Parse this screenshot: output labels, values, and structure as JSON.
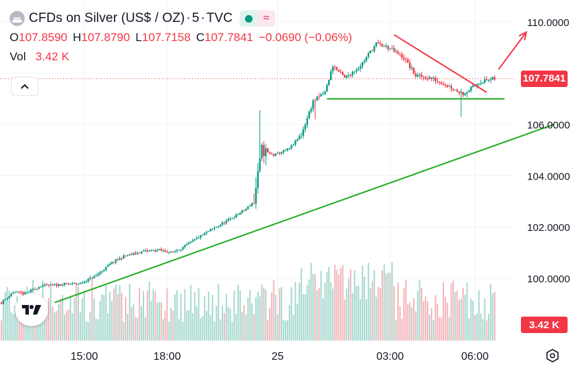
{
  "symbol": {
    "title": "CFDs on Silver (US$ / OZ)",
    "interval": "5",
    "source": "TVC",
    "sep": "·"
  },
  "ohlc": {
    "o_label": "O",
    "o": "107.8590",
    "h_label": "H",
    "h": "107.8790",
    "l_label": "L",
    "l": "107.7158",
    "c_label": "C",
    "c": "107.7841",
    "change": "−0.0690 (−0.06%)"
  },
  "volume": {
    "label": "Vol",
    "value": "3.42 K"
  },
  "icons": {
    "symbol_logo": "silver-logo-icon",
    "market_open": "market-open-dot-icon",
    "alt": "approx-icon",
    "collapse": "chevron-up-icon",
    "brand": "tradingview-logo-icon",
    "settings": "settings-icon"
  },
  "price_labels": {
    "last_price": "107.7841",
    "volume": "3.42 K"
  },
  "colors": {
    "up": "#089981",
    "down": "#f23645",
    "volume_up": "#a6d9cf",
    "volume_down": "#f5b5b9",
    "trend_green": "#22ab20",
    "trend_red": "#f23645"
  },
  "chart_data": {
    "type": "candlestick",
    "x_ticks": [
      "15:00",
      "18:00",
      "25",
      "03:00",
      "06:00"
    ],
    "y_ticks": [
      "110.0000",
      "106.0000",
      "104.0000",
      "102.0000",
      "100.0000"
    ],
    "ylim": [
      97.9,
      111.2
    ],
    "last_price": 107.7841,
    "anchors": [
      {
        "t": 0,
        "p": 99.05
      },
      {
        "t": 6,
        "p": 99.45
      },
      {
        "t": 12,
        "p": 99.4
      },
      {
        "t": 20,
        "p": 99.7
      },
      {
        "t": 30,
        "p": 99.75
      },
      {
        "t": 40,
        "p": 99.8
      },
      {
        "t": 48,
        "p": 100.1
      },
      {
        "t": 56,
        "p": 100.6
      },
      {
        "t": 62,
        "p": 100.85
      },
      {
        "t": 72,
        "p": 101.05
      },
      {
        "t": 80,
        "p": 101.1
      },
      {
        "t": 86,
        "p": 101.0
      },
      {
        "t": 92,
        "p": 101.2
      },
      {
        "t": 100,
        "p": 101.6
      },
      {
        "t": 110,
        "p": 102.05
      },
      {
        "t": 118,
        "p": 102.4
      },
      {
        "t": 124,
        "p": 102.7
      },
      {
        "t": 128,
        "p": 103.0
      },
      {
        "t": 132,
        "p": 105.0
      },
      {
        "t": 138,
        "p": 104.8
      },
      {
        "t": 146,
        "p": 105.05
      },
      {
        "t": 152,
        "p": 105.6
      },
      {
        "t": 158,
        "p": 106.9
      },
      {
        "t": 164,
        "p": 107.25
      },
      {
        "t": 168,
        "p": 108.3
      },
      {
        "t": 174,
        "p": 107.8
      },
      {
        "t": 182,
        "p": 108.3
      },
      {
        "t": 190,
        "p": 109.15
      },
      {
        "t": 196,
        "p": 109.0
      },
      {
        "t": 204,
        "p": 108.6
      },
      {
        "t": 210,
        "p": 107.9
      },
      {
        "t": 218,
        "p": 107.8
      },
      {
        "t": 224,
        "p": 107.6
      },
      {
        "t": 230,
        "p": 107.35
      },
      {
        "t": 234,
        "p": 107.2
      },
      {
        "t": 238,
        "p": 107.4
      },
      {
        "t": 242,
        "p": 107.65
      },
      {
        "t": 250,
        "p": 107.78
      }
    ],
    "trendlines": [
      {
        "name": "support-uptrend",
        "from": {
          "t": 27,
          "p": 99.05
        },
        "to": {
          "t": 280,
          "p": 106.0
        },
        "color": "#22ab20"
      },
      {
        "name": "horizontal-support",
        "from": {
          "t": 165,
          "p": 107.0
        },
        "to": {
          "t": 255,
          "p": 107.0
        },
        "color": "#22ab20"
      },
      {
        "name": "downtrend-resistance",
        "from": {
          "t": 199,
          "p": 109.5
        },
        "to": {
          "t": 246,
          "p": 107.25
        },
        "color": "#f23645"
      },
      {
        "name": "breakout-arrow",
        "from": {
          "t": 252,
          "p": 108.15
        },
        "to": {
          "t": 266,
          "p": 109.6
        },
        "color": "#f23645"
      }
    ]
  }
}
